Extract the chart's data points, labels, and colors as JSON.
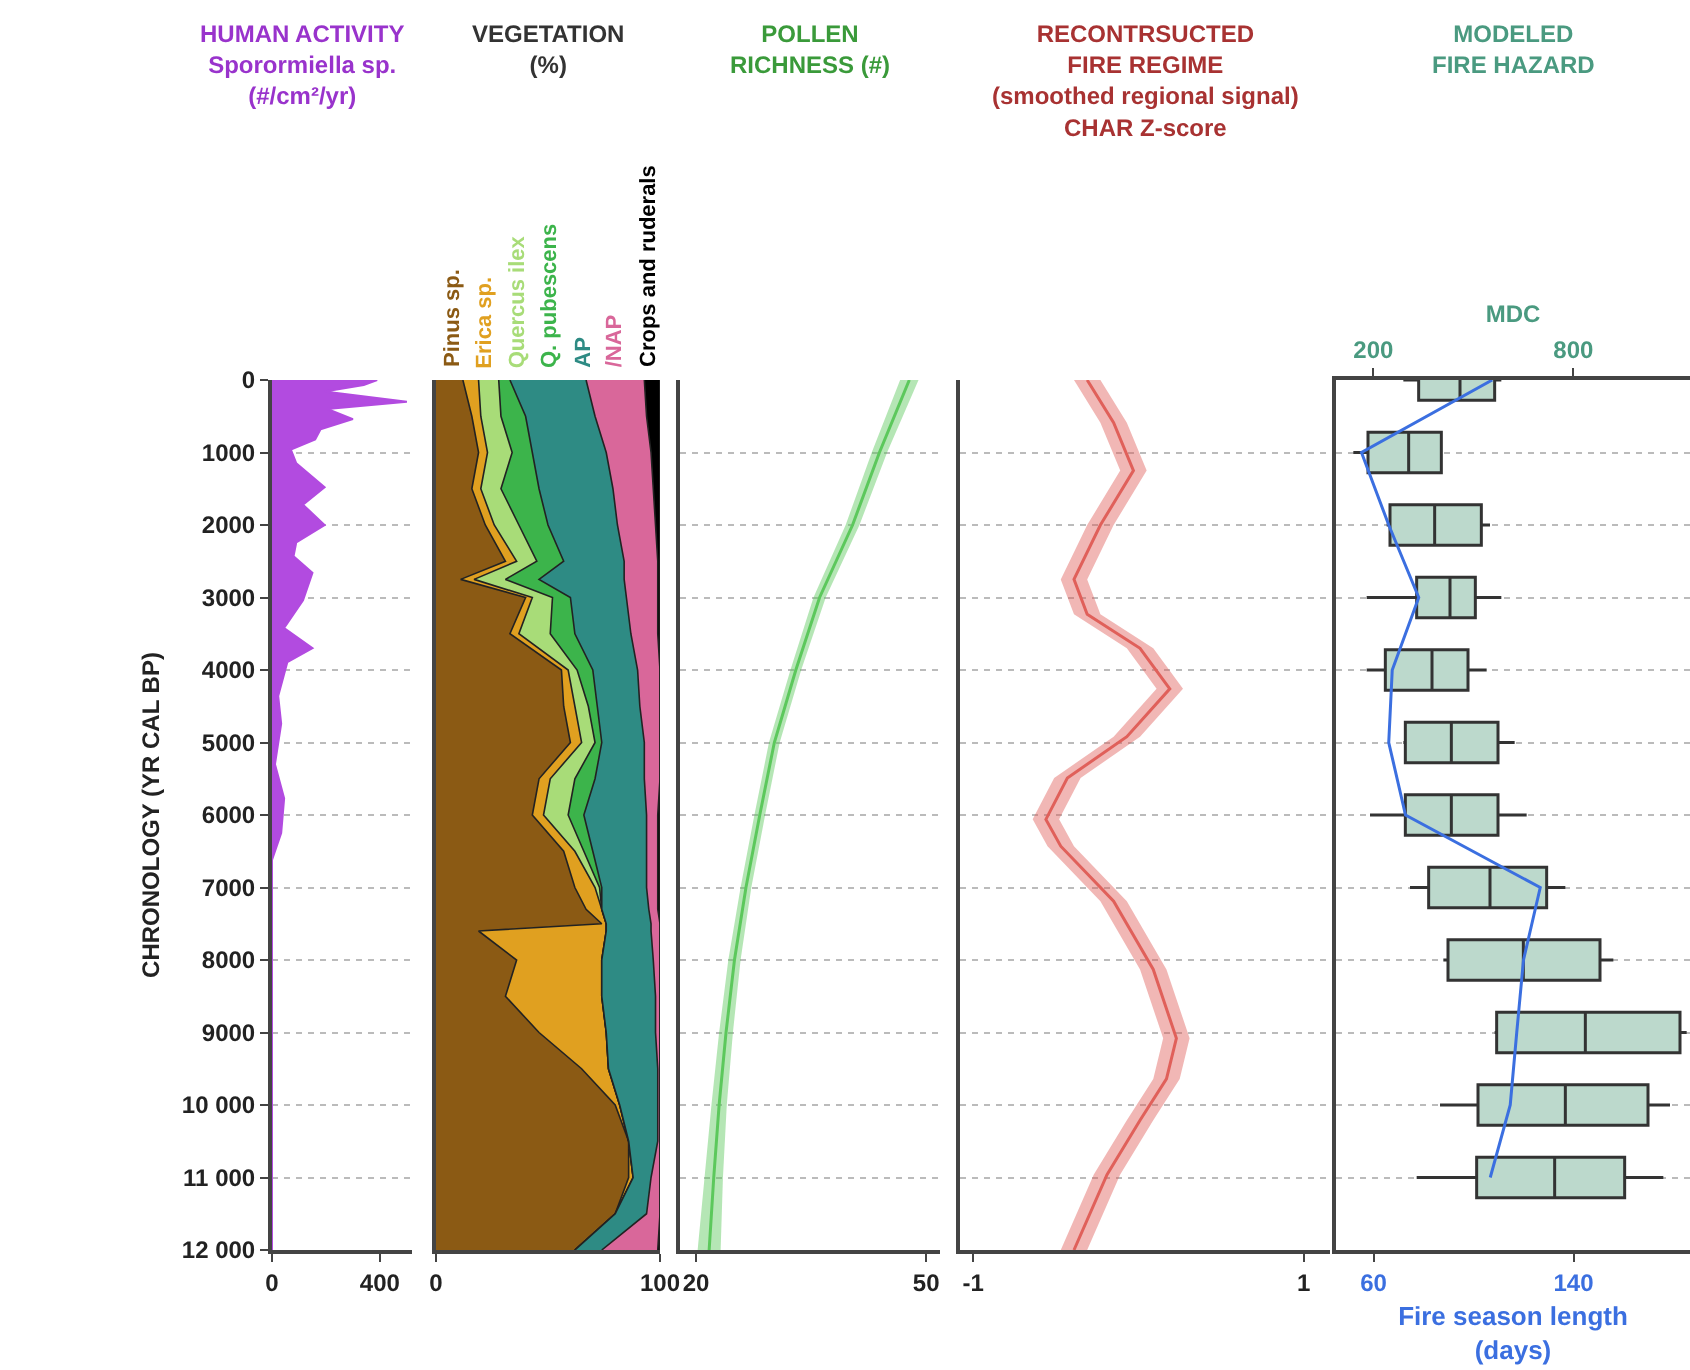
{
  "chart_data": [
    {
      "type": "area",
      "title": "HUMAN ACTIVITY",
      "subtitle": "Sporormiella sp.\n(#/cm²/yr)",
      "ylabel": "CHRONOLOGY (YR CAL BP)",
      "orientation": "horizontal",
      "x": [
        0,
        70,
        160,
        300,
        400,
        540,
        680,
        820,
        960,
        1150,
        1480,
        1720,
        2000,
        2240,
        2430,
        2660,
        3040,
        3420,
        3700,
        3890,
        4360,
        4740,
        5300,
        5770,
        6250,
        6620,
        12000
      ],
      "series": [
        {
          "color": "#b24be0",
          "values": [
            390,
            340,
            195,
            500,
            205,
            300,
            180,
            160,
            70,
            90,
            195,
            115,
            195,
            90,
            80,
            150,
            115,
            45,
            150,
            57,
            23,
            34,
            11,
            45,
            34,
            0,
            0
          ]
        }
      ],
      "xlim": [
        0,
        519
      ],
      "xticks": [
        0,
        400
      ],
      "ylim": [
        12000,
        0
      ],
      "yticks": [
        0,
        1000,
        2000,
        3000,
        4000,
        5000,
        6000,
        7000,
        8000,
        9000,
        {
          "value": 10000,
          "label": "10 000"
        },
        {
          "value": 11000,
          "label": "11 000"
        },
        {
          "value": 12000,
          "label": "12 000"
        }
      ],
      "grid": "y"
    },
    {
      "type": "area",
      "title": "VEGETATION\n(%)",
      "orientation": "horizontal",
      "stacked": true,
      "x": [
        0,
        500,
        1000,
        1500,
        2000,
        2500,
        2750,
        3000,
        3500,
        4000,
        4500,
        5000,
        5500,
        6000,
        6500,
        7000,
        7300,
        7500,
        7600,
        8000,
        8500,
        9000,
        9500,
        10000,
        10500,
        11000,
        11500,
        12000
      ],
      "series": [
        {
          "name": "Pinus sp.",
          "color": "#8b5a14",
          "values": [
            12,
            16,
            19,
            16,
            22,
            31,
            11,
            40,
            33,
            56,
            57,
            60,
            46,
            43,
            57,
            62,
            67,
            74,
            19,
            36,
            31,
            46,
            65,
            80,
            86,
            86,
            80,
            62
          ]
        },
        {
          "name": "Erica sp.",
          "color": "#e0a020",
          "values": [
            7,
            4,
            4,
            4,
            4,
            5,
            6,
            3,
            4,
            3,
            5,
            5,
            5,
            5,
            5,
            9,
            7,
            2,
            57,
            38,
            43,
            30,
            12,
            2,
            0,
            2,
            0,
            0
          ]
        },
        {
          "name": "Quercus ilex",
          "color": "#a8dc78",
          "values": [
            9,
            9,
            11,
            9,
            11,
            9,
            14,
            9,
            14,
            4,
            6,
            6,
            11,
            11,
            4,
            2,
            0,
            0,
            0,
            0,
            0,
            0,
            0,
            0,
            0,
            0,
            0,
            0
          ]
        },
        {
          "name": "Q. pubescens",
          "color": "#3cb44b",
          "values": [
            5,
            11,
            9,
            17,
            13,
            12,
            15,
            8,
            11,
            7,
            4,
            3,
            9,
            7,
            4,
            1,
            0,
            0,
            0,
            0,
            0,
            0,
            0,
            0,
            0,
            0,
            0,
            0
          ]
        },
        {
          "name": "AP",
          "color": "#2e8b84",
          "values": [
            34,
            31,
            33,
            33,
            31,
            27,
            38,
            25,
            25,
            20,
            19,
            19,
            22,
            28,
            24,
            20,
            21,
            20,
            20,
            23,
            24,
            22,
            22,
            17,
            13,
            8,
            14,
            12
          ]
        },
        {
          "name": "/NAP",
          "color": "#d9679a",
          "values": [
            26,
            23,
            20,
            18,
            17,
            15,
            15,
            14,
            12,
            10,
            9,
            7,
            7,
            5,
            5,
            5,
            4,
            4,
            4,
            3,
            2,
            2,
            1,
            1,
            1,
            4,
            6,
            25
          ]
        },
        {
          "name": "Crops and ruderals",
          "color": "#000000",
          "values": [
            7,
            6,
            4,
            3,
            2,
            1,
            1,
            1,
            1,
            0,
            0,
            0,
            0,
            1,
            1,
            1,
            1,
            0,
            0,
            0,
            0,
            0,
            0,
            0,
            0,
            0,
            0,
            1
          ]
        }
      ],
      "xlim": [
        0,
        100
      ],
      "xticks": [
        0,
        100
      ],
      "ylim": [
        12000,
        0
      ],
      "yticks": [
        0,
        1000,
        2000,
        3000,
        4000,
        5000,
        6000,
        7000,
        8000,
        9000,
        10000,
        11000,
        12000
      ],
      "grid": "y",
      "tick_labels": "x"
    },
    {
      "type": "line",
      "title": "POLLEN\nRICHNESS (#)",
      "orientation": "horizontal",
      "x": [
        0,
        1000,
        2000,
        3000,
        4000,
        5000,
        6000,
        7000,
        8000,
        9000,
        10000,
        11000,
        12000
      ],
      "series": [
        {
          "color": "#5cc85c",
          "values": [
            47.8,
            43.9,
            40.4,
            36.1,
            33.0,
            30.2,
            28.3,
            26.5,
            25.0,
            23.9,
            23.0,
            22.3,
            21.7
          ],
          "lower": [
            46.6,
            42.9,
            39.5,
            35.3,
            32.3,
            29.5,
            27.6,
            25.8,
            24.2,
            23.0,
            22.0,
            21.1,
            20.2
          ],
          "upper": [
            49.0,
            44.9,
            41.3,
            36.9,
            33.7,
            30.9,
            29.0,
            27.2,
            25.8,
            24.8,
            24.0,
            23.5,
            23.2
          ]
        }
      ],
      "xlim": [
        17.9,
        51.8
      ],
      "xticks": [
        20,
        50
      ],
      "ylim": [
        12000,
        0
      ],
      "yticks": [
        0,
        1000,
        2000,
        3000,
        4000,
        5000,
        6000,
        7000,
        8000,
        9000,
        10000,
        11000,
        12000
      ],
      "grid": "y",
      "tick_labels": "x"
    },
    {
      "type": "line",
      "title": "RECONTRSUCTED\nFIRE REGIME",
      "subtitle": "(smoothed regional signal)",
      "annotations": [
        "CHAR Z-score"
      ],
      "orientation": "horizontal",
      "x": [
        0,
        590,
        1250,
        2000,
        2750,
        3230,
        3700,
        4260,
        4920,
        5490,
        6060,
        6430,
        7190,
        8130,
        9080,
        9640,
        10210,
        10960,
        12000
      ],
      "series": [
        {
          "color": "#e0605a",
          "values": [
            -0.31,
            -0.15,
            -0.03,
            -0.23,
            -0.39,
            -0.31,
            0.01,
            0.19,
            -0.07,
            -0.43,
            -0.56,
            -0.47,
            -0.15,
            0.09,
            0.23,
            0.17,
            0.01,
            -0.19,
            -0.39
          ],
          "lower": [
            -0.39,
            -0.23,
            -0.11,
            -0.31,
            -0.47,
            -0.39,
            -0.07,
            0.11,
            -0.15,
            -0.51,
            -0.64,
            -0.55,
            -0.23,
            0.01,
            0.15,
            0.09,
            -0.07,
            -0.27,
            -0.47
          ],
          "upper": [
            -0.23,
            -0.07,
            0.05,
            -0.15,
            -0.31,
            -0.23,
            0.09,
            0.27,
            0.01,
            -0.35,
            -0.48,
            -0.39,
            -0.07,
            0.17,
            0.31,
            0.25,
            0.09,
            -0.11,
            -0.31
          ]
        }
      ],
      "xlim": [
        -1.08,
        1.16
      ],
      "xticks": [
        -1,
        1
      ],
      "ylim": [
        12000,
        0
      ],
      "yticks": [
        0,
        1000,
        2000,
        3000,
        4000,
        5000,
        6000,
        7000,
        8000,
        9000,
        10000,
        11000,
        12000
      ],
      "grid": "y",
      "tick_labels": "x"
    },
    {
      "type": "box",
      "title": "MODELED\nFIRE HAZARD",
      "xlabel": "Fire season length\n(days)",
      "x2label": "MDC",
      "orientation": "horizontal",
      "x": [
        0,
        1000,
        2000,
        3000,
        4000,
        5000,
        6000,
        7000,
        8000,
        9000,
        10000,
        11000
      ],
      "series": [
        {
          "axis": "x2",
          "color": "#bcd9cc",
          "boxes": [
            {
              "low": 290,
              "q1": 336,
              "median": 460,
              "q3": 564,
              "high": 584
            },
            {
              "low": 140,
              "q1": 184,
              "median": 306,
              "q3": 404,
              "high": 404
            },
            {
              "low": 240,
              "q1": 250,
              "median": 384,
              "q3": 524,
              "high": 550
            },
            {
              "low": 180,
              "q1": 330,
              "median": 430,
              "q3": 506,
              "high": 584
            },
            {
              "low": 180,
              "q1": 236,
              "median": 376,
              "q3": 484,
              "high": 540
            },
            {
              "low": 290,
              "q1": 296,
              "median": 434,
              "q3": 574,
              "high": 624
            },
            {
              "low": 190,
              "q1": 296,
              "median": 434,
              "q3": 574,
              "high": 660
            },
            {
              "low": 310,
              "q1": 366,
              "median": 550,
              "q3": 720,
              "high": 776
            },
            {
              "low": 410,
              "q1": 424,
              "median": 650,
              "q3": 880,
              "high": 920
            },
            {
              "low": 564,
              "q1": 570,
              "median": 836,
              "q3": 1120,
              "high": 1140
            },
            {
              "low": 400,
              "q1": 514,
              "median": 776,
              "q3": 1024,
              "high": 1090
            },
            {
              "low": 330,
              "q1": 510,
              "median": 744,
              "q3": 954,
              "high": 1070
            }
          ]
        },
        {
          "type": "line",
          "color": "#3b6fe0",
          "values": [
            107.5,
            55.2,
            66.1,
            78.1,
            67.5,
            66.1,
            72.8,
            126.7,
            120,
            117.3,
            114.7,
            106.7
          ]
        }
      ],
      "xlim": [
        45,
        186.6
      ],
      "xticks": [
        60,
        140
      ],
      "x2lim": [
        88,
        1150
      ],
      "x2ticks": [
        200,
        800
      ],
      "ylim": [
        12000,
        0
      ],
      "yticks": [
        0,
        1000,
        2000,
        3000,
        4000,
        5000,
        6000,
        7000,
        8000,
        9000,
        10000,
        11000,
        12000
      ],
      "grid": "y",
      "tick_labels": "x"
    }
  ]
}
